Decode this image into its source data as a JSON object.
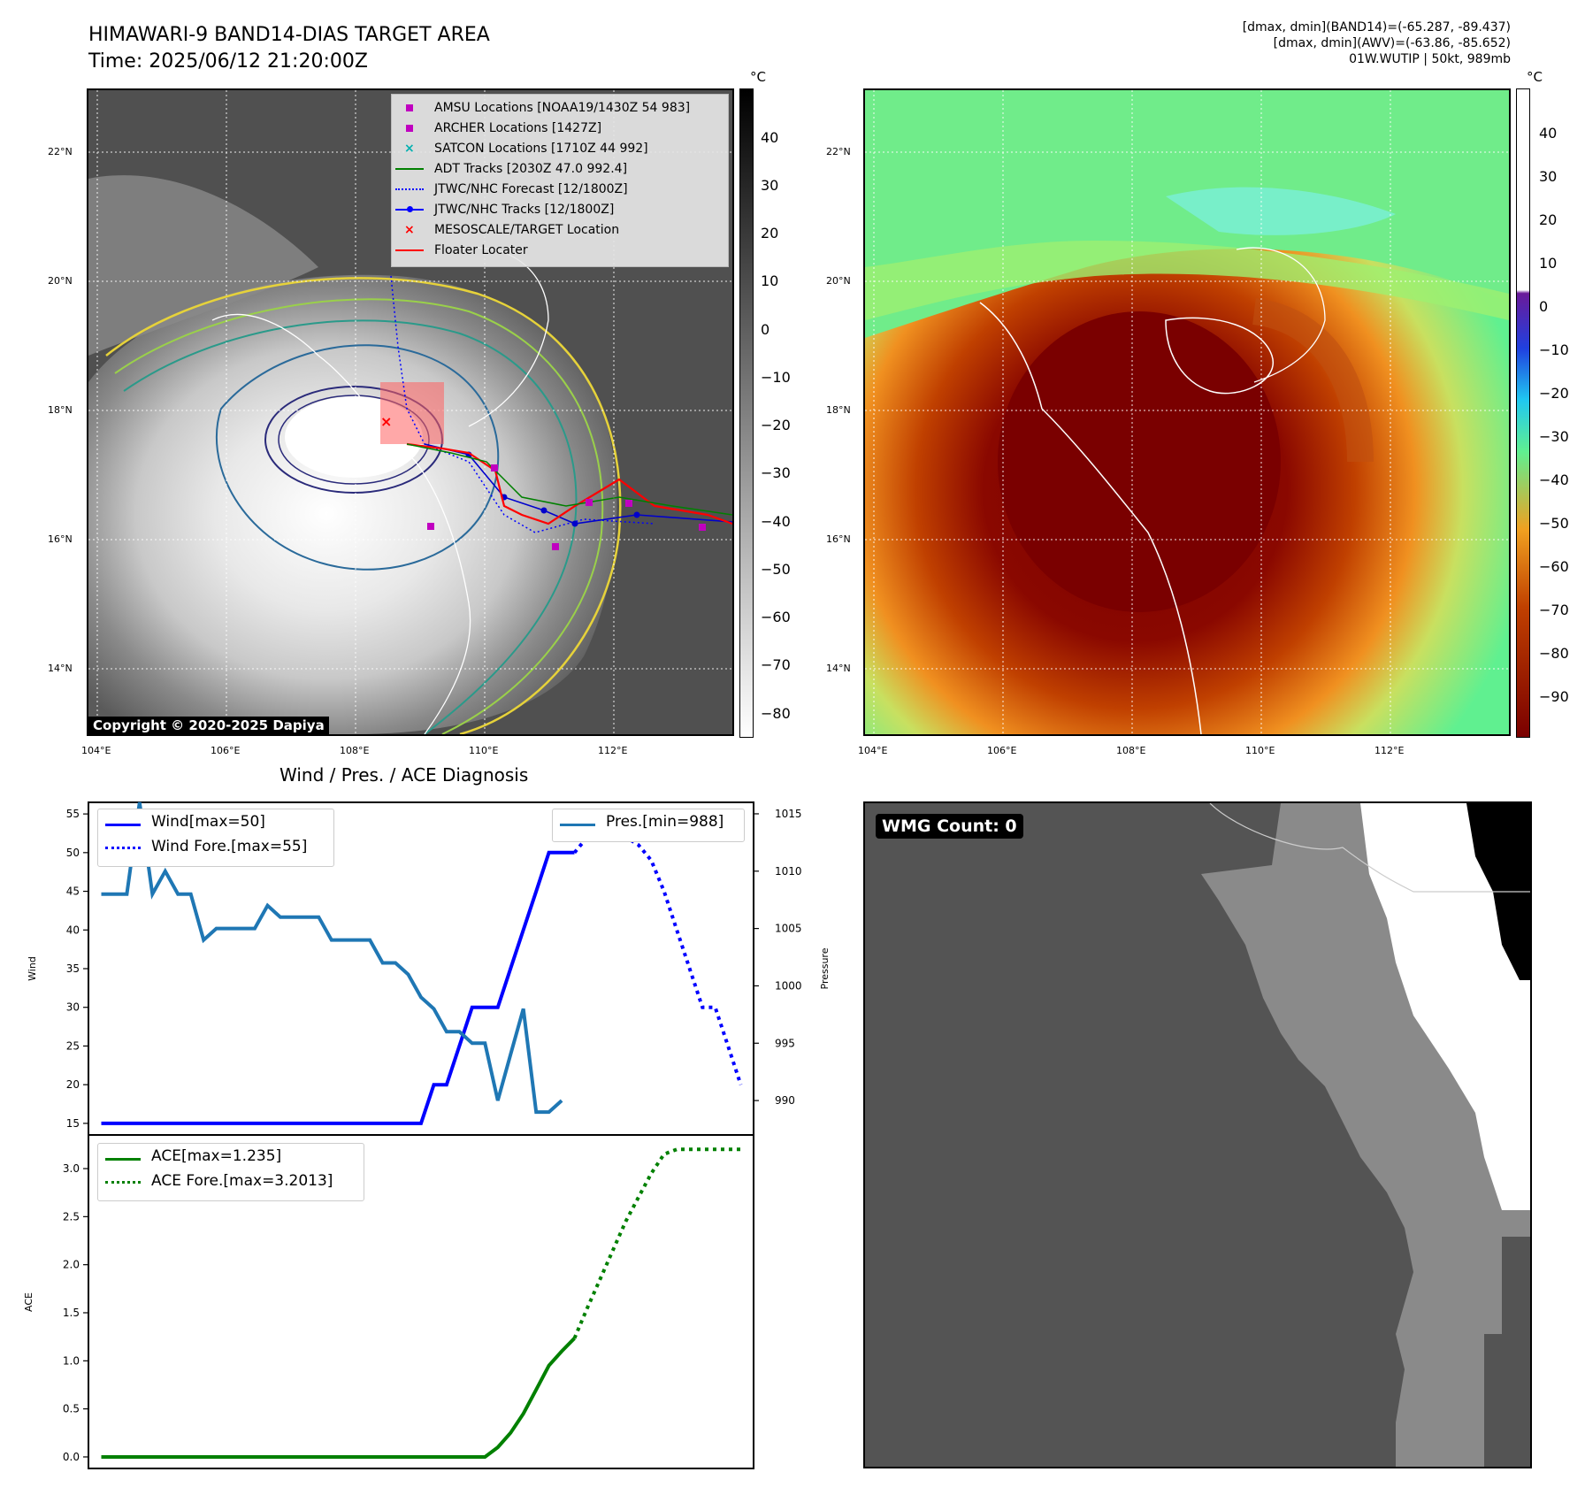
{
  "header": {
    "title_line1": "HIMAWARI-9 BAND14-DIAS TARGET AREA",
    "title_line2": "Time: 2025/06/12 21:20:00Z",
    "meta_line1": "[dmax, dmin](BAND14)=(-65.287, -89.437)",
    "meta_line2": "[dmax, dmin](AWV)=(-63.86, -85.652)",
    "meta_line3": "01W.WUTIP | 50kt, 989mb"
  },
  "map_axes": {
    "lon_ticks": [
      "104°E",
      "106°E",
      "108°E",
      "110°E",
      "112°E"
    ],
    "lat_ticks": [
      "22°N",
      "20°N",
      "18°N",
      "16°N",
      "14°N"
    ]
  },
  "ir_colorbar": {
    "unit": "°C",
    "ticks": [
      "40",
      "30",
      "20",
      "10",
      "0",
      "−10",
      "−20",
      "−30",
      "−40",
      "−50",
      "−60",
      "−70",
      "−80"
    ]
  },
  "awv_colorbar": {
    "unit": "°C",
    "ticks": [
      "40",
      "30",
      "20",
      "10",
      "0",
      "−10",
      "−20",
      "−30",
      "−40",
      "−50",
      "−60",
      "−70",
      "−80",
      "−90"
    ]
  },
  "map_legend": {
    "items": [
      {
        "label": "AMSU Locations [NOAA19/1430Z 54 983]",
        "color": "#c000c0",
        "marker": "square"
      },
      {
        "label": "ARCHER Locations [1427Z]",
        "color": "#c000c0",
        "marker": "square"
      },
      {
        "label": "SATCON Locations [1710Z 44 992]",
        "color": "#00b0b0",
        "marker": "x"
      },
      {
        "label": "ADT Tracks [2030Z 47.0 992.4]",
        "color": "#008000",
        "marker": "line"
      },
      {
        "label": "JTWC/NHC Forecast [12/1800Z]",
        "color": "#0000ff",
        "marker": "dotted"
      },
      {
        "label": "JTWC/NHC Tracks [12/1800Z]",
        "color": "#0000ff",
        "marker": "line-dot"
      },
      {
        "label": "MESOSCALE/TARGET Location",
        "color": "#ff0000",
        "marker": "x"
      },
      {
        "label": "Floater Locater",
        "color": "#ff0000",
        "marker": "line"
      }
    ]
  },
  "copyright": "Copyright © 2020-2025 Dapiya",
  "diagnosis_title": "Wind / Pres. / ACE Diagnosis",
  "wmg_label": "WMG Count: 0",
  "colors": {
    "wind": "#0000ff",
    "pressure": "#1f77b4",
    "ace": "#008000"
  },
  "chart_data": [
    {
      "type": "line",
      "panel": "wind-pressure",
      "ylabel": "Wind",
      "ylabel_right": "Pressure",
      "ylim": [
        13.5,
        56.5
      ],
      "ylim_right": [
        987,
        1016
      ],
      "yticks": [
        15,
        20,
        25,
        30,
        35,
        40,
        45,
        50,
        55
      ],
      "yticks_right": [
        990,
        995,
        1000,
        1005,
        1010,
        1015
      ],
      "series": [
        {
          "name": "Wind[max=50]",
          "axis": "left",
          "style": "solid",
          "x": [
            0,
            1,
            2,
            3,
            4,
            5,
            6,
            7,
            8,
            9,
            10,
            11,
            12,
            13,
            14,
            15,
            16,
            17,
            18,
            19,
            20,
            21,
            22,
            23,
            24,
            25,
            26,
            27,
            28,
            29,
            30,
            31,
            32,
            33,
            34,
            35,
            36,
            37
          ],
          "values": [
            15,
            15,
            15,
            15,
            15,
            15,
            15,
            15,
            15,
            15,
            15,
            15,
            15,
            15,
            15,
            15,
            15,
            15,
            15,
            15,
            15,
            15,
            15,
            15,
            15,
            15,
            20,
            20,
            25,
            30,
            30,
            30,
            35,
            40,
            45,
            50,
            50,
            50
          ]
        },
        {
          "name": "Wind Fore.[max=55]",
          "axis": "left",
          "style": "dotted",
          "x": [
            37,
            38,
            39,
            40,
            41,
            42,
            43,
            44,
            45,
            46,
            47,
            48,
            49,
            50
          ],
          "values": [
            50,
            52,
            55,
            54,
            52,
            51,
            49,
            45,
            40,
            35,
            30,
            30,
            25,
            20
          ]
        },
        {
          "name": "Pres.[min=988]",
          "axis": "right",
          "style": "solid",
          "x": [
            0,
            1,
            2,
            3,
            4,
            5,
            6,
            7,
            8,
            9,
            10,
            11,
            12,
            13,
            14,
            15,
            16,
            17,
            18,
            19,
            20,
            21,
            22,
            23,
            24,
            25,
            26,
            27,
            28,
            29,
            30,
            31,
            32,
            33,
            34,
            35,
            36,
            37,
            38
          ],
          "values": [
            1008,
            1008,
            1008,
            1016,
            1008,
            1010,
            1008,
            1008,
            1004,
            1005,
            1005,
            1005,
            1005,
            1007,
            1006,
            1006,
            1006,
            1006,
            1004,
            1004,
            1004,
            1004,
            1002,
            1002,
            1001,
            999,
            998,
            996,
            996,
            995,
            995,
            990,
            994,
            998,
            989,
            989,
            990,
            null,
            null
          ]
        }
      ]
    },
    {
      "type": "line",
      "panel": "ace",
      "ylabel": "ACE",
      "ylim": [
        -0.12,
        3.35
      ],
      "yticks": [
        0.0,
        0.5,
        1.0,
        1.5,
        2.0,
        2.5,
        3.0
      ],
      "series": [
        {
          "name": "ACE[max=1.235]",
          "style": "solid",
          "x": [
            0,
            1,
            2,
            3,
            4,
            5,
            6,
            7,
            8,
            9,
            10,
            11,
            12,
            13,
            14,
            15,
            16,
            17,
            18,
            19,
            20,
            21,
            22,
            23,
            24,
            25,
            26,
            27,
            28,
            29,
            30,
            31,
            32,
            33,
            34,
            35,
            36,
            37
          ],
          "values": [
            0,
            0,
            0,
            0,
            0,
            0,
            0,
            0,
            0,
            0,
            0,
            0,
            0,
            0,
            0,
            0,
            0,
            0,
            0,
            0,
            0,
            0,
            0,
            0,
            0,
            0,
            0,
            0,
            0,
            0,
            0,
            0.1,
            0.25,
            0.45,
            0.7,
            0.95,
            1.1,
            1.235
          ]
        },
        {
          "name": "ACE Fore.[max=3.2013]",
          "style": "dotted",
          "x": [
            37,
            38,
            39,
            40,
            41,
            42,
            43,
            44,
            45,
            46,
            47,
            48,
            49,
            50
          ],
          "values": [
            1.235,
            1.55,
            1.85,
            2.15,
            2.45,
            2.7,
            2.95,
            3.15,
            3.2,
            3.2,
            3.2,
            3.2,
            3.2,
            3.2
          ]
        }
      ]
    }
  ]
}
